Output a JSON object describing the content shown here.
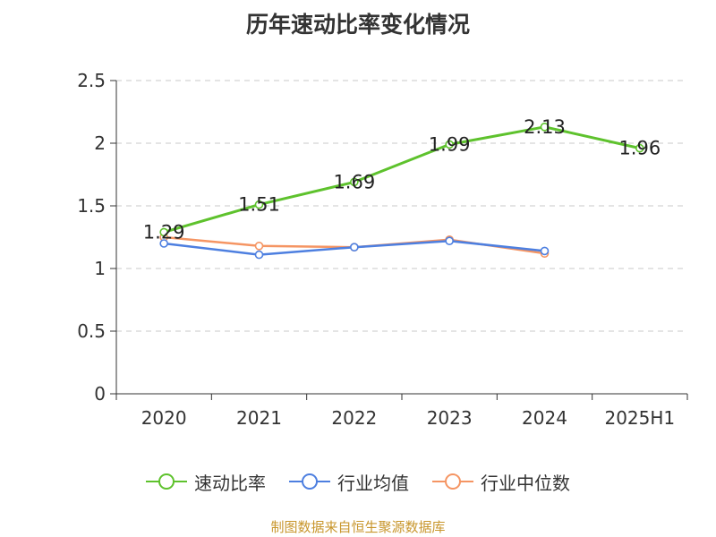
{
  "chart_data": {
    "type": "line",
    "title": "历年速动比率变化情况",
    "categories": [
      "2020",
      "2021",
      "2022",
      "2023",
      "2024",
      "2025H1"
    ],
    "yticks": [
      "0",
      "0.5",
      "1",
      "1.5",
      "2",
      "2.5"
    ],
    "ylim": [
      0,
      2.5
    ],
    "grid": true,
    "legend_position": "bottom",
    "series": [
      {
        "name": "速动比率",
        "color": "#5ec22d",
        "values": [
          1.29,
          1.51,
          1.69,
          1.99,
          2.13,
          1.96
        ],
        "labels": [
          "1.29",
          "1.51",
          "1.69",
          "1.99",
          "2.13",
          "1.96"
        ]
      },
      {
        "name": "行业均值",
        "color": "#4d7fe0",
        "values": [
          1.2,
          1.11,
          1.17,
          1.22,
          1.14,
          null
        ]
      },
      {
        "name": "行业中位数",
        "color": "#f59563",
        "values": [
          1.25,
          1.18,
          1.17,
          1.23,
          1.12,
          null
        ]
      }
    ]
  },
  "source_note": "制图数据来自恒生聚源数据库"
}
